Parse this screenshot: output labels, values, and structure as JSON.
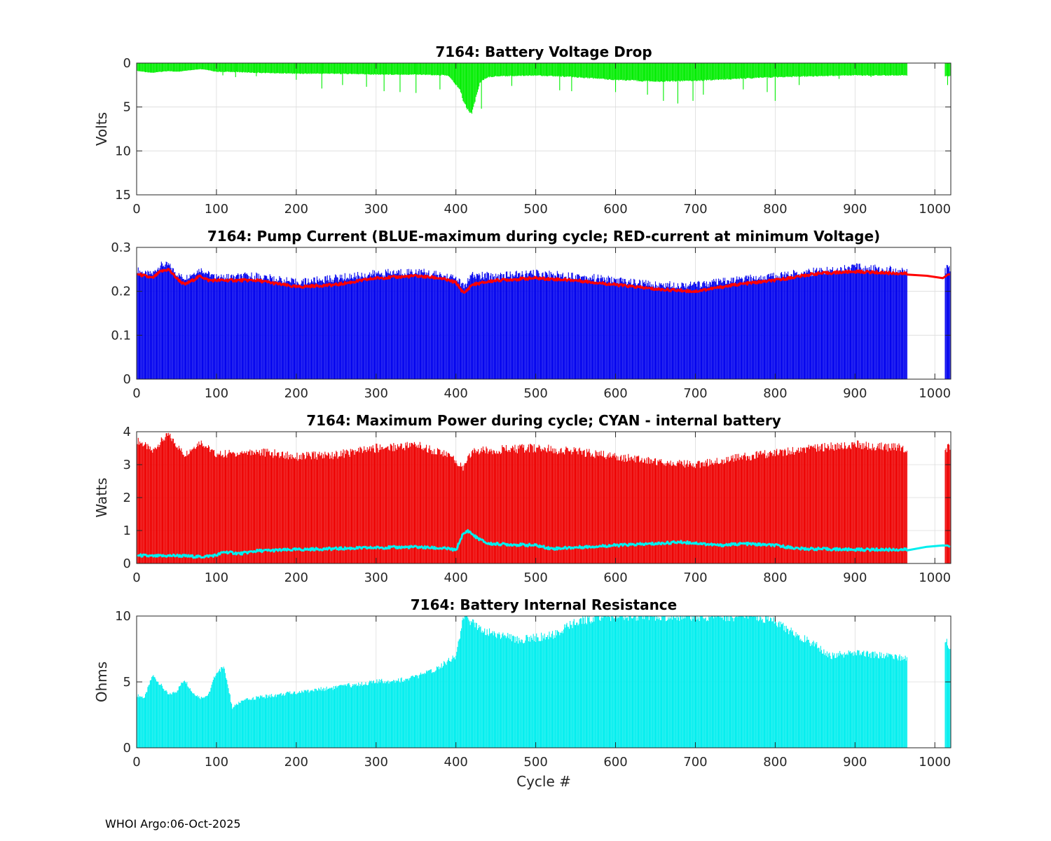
{
  "footer": "WHOI Argo:06-Oct-2025",
  "xlabel": "Cycle #",
  "chart_data": [
    {
      "type": "bar",
      "id": "voltage",
      "title": "7164: Battery Voltage Drop",
      "ylabel": "Volts",
      "xlim": [
        0,
        1020
      ],
      "ylim": [
        0,
        15
      ],
      "y_reversed": true,
      "xticks": [
        0,
        100,
        200,
        300,
        400,
        500,
        600,
        700,
        800,
        900,
        1000
      ],
      "yticks": [
        0,
        5,
        10,
        15
      ],
      "grid": true,
      "series": [
        {
          "name": "Voltage drop",
          "color": "#00ee00",
          "style": "stem",
          "points": [
            [
              0,
              0.9
            ],
            [
              10,
              1.0
            ],
            [
              20,
              1.1
            ],
            [
              30,
              1.0
            ],
            [
              40,
              0.9
            ],
            [
              50,
              1.0
            ],
            [
              60,
              0.9
            ],
            [
              70,
              0.8
            ],
            [
              80,
              0.7
            ],
            [
              90,
              0.8
            ],
            [
              100,
              1.0
            ],
            [
              120,
              1.0
            ],
            [
              150,
              1.1
            ],
            [
              200,
              1.2
            ],
            [
              250,
              1.2
            ],
            [
              300,
              1.3
            ],
            [
              350,
              1.3
            ],
            [
              390,
              1.4
            ],
            [
              405,
              3.0
            ],
            [
              410,
              4.5
            ],
            [
              415,
              5.3
            ],
            [
              420,
              5.7
            ],
            [
              425,
              4.0
            ],
            [
              430,
              2.2
            ],
            [
              440,
              1.6
            ],
            [
              450,
              1.5
            ],
            [
              500,
              1.4
            ],
            [
              550,
              1.6
            ],
            [
              600,
              1.9
            ],
            [
              650,
              2.1
            ],
            [
              700,
              2.0
            ],
            [
              750,
              1.8
            ],
            [
              800,
              1.6
            ],
            [
              850,
              1.5
            ],
            [
              900,
              1.4
            ],
            [
              965,
              1.4
            ],
            [
              1015,
              1.5
            ],
            [
              1020,
              1.5
            ]
          ],
          "spikes": [
            [
              108,
              1.4
            ],
            [
              124,
              1.6
            ],
            [
              150,
              1.5
            ],
            [
              200,
              1.9
            ],
            [
              232,
              2.9
            ],
            [
              258,
              2.5
            ],
            [
              288,
              2.7
            ],
            [
              310,
              3.2
            ],
            [
              330,
              3.3
            ],
            [
              350,
              3.4
            ],
            [
              380,
              3.0
            ],
            [
              432,
              5.2
            ],
            [
              470,
              2.6
            ],
            [
              530,
              3.1
            ],
            [
              545,
              3.2
            ],
            [
              600,
              3.3
            ],
            [
              640,
              3.6
            ],
            [
              660,
              4.3
            ],
            [
              678,
              4.6
            ],
            [
              697,
              4.3
            ],
            [
              710,
              3.6
            ],
            [
              760,
              3.0
            ],
            [
              790,
              3.3
            ],
            [
              800,
              4.3
            ],
            [
              830,
              2.5
            ],
            [
              880,
              1.8
            ],
            [
              920,
              1.6
            ],
            [
              1016,
              2.5
            ]
          ]
        }
      ]
    },
    {
      "type": "bar",
      "id": "current",
      "title": "7164: Pump Current (BLUE-maximum during cycle; RED-current at minimum Voltage)",
      "ylabel": "",
      "xlim": [
        0,
        1020
      ],
      "ylim": [
        0,
        0.3
      ],
      "xticks": [
        0,
        100,
        200,
        300,
        400,
        500,
        600,
        700,
        800,
        900,
        1000
      ],
      "yticks": [
        0,
        0.1,
        0.2,
        0.3
      ],
      "grid": true,
      "series": [
        {
          "name": "BLUE-maximum during cycle",
          "color": "#0000ee",
          "style": "stem",
          "points": [
            [
              0,
              0.25
            ],
            [
              10,
              0.24
            ],
            [
              20,
              0.24
            ],
            [
              30,
              0.26
            ],
            [
              40,
              0.26
            ],
            [
              50,
              0.24
            ],
            [
              60,
              0.23
            ],
            [
              70,
              0.24
            ],
            [
              80,
              0.25
            ],
            [
              90,
              0.24
            ],
            [
              100,
              0.23
            ],
            [
              150,
              0.235
            ],
            [
              200,
              0.22
            ],
            [
              250,
              0.23
            ],
            [
              300,
              0.24
            ],
            [
              350,
              0.245
            ],
            [
              400,
              0.23
            ],
            [
              410,
              0.21
            ],
            [
              420,
              0.235
            ],
            [
              450,
              0.235
            ],
            [
              500,
              0.24
            ],
            [
              550,
              0.235
            ],
            [
              600,
              0.225
            ],
            [
              650,
              0.215
            ],
            [
              700,
              0.215
            ],
            [
              750,
              0.225
            ],
            [
              800,
              0.235
            ],
            [
              850,
              0.245
            ],
            [
              900,
              0.255
            ],
            [
              965,
              0.245
            ],
            [
              1015,
              0.25
            ],
            [
              1020,
              0.255
            ]
          ]
        },
        {
          "name": "RED-current at minimum Voltage",
          "color": "#ff0000",
          "style": "line",
          "points": [
            [
              0,
              0.24
            ],
            [
              10,
              0.235
            ],
            [
              20,
              0.23
            ],
            [
              30,
              0.245
            ],
            [
              40,
              0.25
            ],
            [
              50,
              0.23
            ],
            [
              60,
              0.215
            ],
            [
              70,
              0.225
            ],
            [
              80,
              0.235
            ],
            [
              90,
              0.225
            ],
            [
              100,
              0.225
            ],
            [
              150,
              0.225
            ],
            [
              200,
              0.21
            ],
            [
              250,
              0.215
            ],
            [
              300,
              0.23
            ],
            [
              350,
              0.235
            ],
            [
              380,
              0.23
            ],
            [
              400,
              0.22
            ],
            [
              410,
              0.195
            ],
            [
              420,
              0.215
            ],
            [
              450,
              0.225
            ],
            [
              500,
              0.23
            ],
            [
              550,
              0.225
            ],
            [
              600,
              0.215
            ],
            [
              650,
              0.205
            ],
            [
              700,
              0.2
            ],
            [
              750,
              0.215
            ],
            [
              800,
              0.225
            ],
            [
              850,
              0.24
            ],
            [
              900,
              0.245
            ],
            [
              965,
              0.24
            ],
            [
              1010,
              0.23
            ],
            [
              1020,
              0.24
            ]
          ]
        }
      ]
    },
    {
      "type": "bar",
      "id": "power",
      "title": "7164: Maximum Power during cycle; CYAN - internal battery",
      "ylabel": "Watts",
      "xlim": [
        0,
        1020
      ],
      "ylim": [
        0,
        4
      ],
      "xticks": [
        0,
        100,
        200,
        300,
        400,
        500,
        600,
        700,
        800,
        900,
        1000
      ],
      "yticks": [
        0,
        1,
        2,
        3,
        4
      ],
      "grid": true,
      "series": [
        {
          "name": "Maximum Power",
          "color": "#ee0000",
          "style": "stem",
          "points": [
            [
              0,
              3.75
            ],
            [
              10,
              3.6
            ],
            [
              20,
              3.4
            ],
            [
              30,
              3.7
            ],
            [
              40,
              3.9
            ],
            [
              50,
              3.6
            ],
            [
              60,
              3.3
            ],
            [
              70,
              3.5
            ],
            [
              80,
              3.7
            ],
            [
              90,
              3.5
            ],
            [
              100,
              3.3
            ],
            [
              150,
              3.4
            ],
            [
              200,
              3.25
            ],
            [
              250,
              3.3
            ],
            [
              300,
              3.5
            ],
            [
              350,
              3.6
            ],
            [
              390,
              3.3
            ],
            [
              410,
              2.9
            ],
            [
              420,
              3.4
            ],
            [
              450,
              3.45
            ],
            [
              500,
              3.5
            ],
            [
              550,
              3.4
            ],
            [
              600,
              3.25
            ],
            [
              650,
              3.1
            ],
            [
              700,
              3.0
            ],
            [
              750,
              3.2
            ],
            [
              800,
              3.35
            ],
            [
              850,
              3.5
            ],
            [
              900,
              3.6
            ],
            [
              965,
              3.5
            ],
            [
              1015,
              3.45
            ],
            [
              1020,
              3.6
            ]
          ]
        },
        {
          "name": "CYAN - internal battery",
          "color": "#00eeee",
          "style": "line",
          "points": [
            [
              0,
              0.25
            ],
            [
              20,
              0.22
            ],
            [
              50,
              0.24
            ],
            [
              80,
              0.2
            ],
            [
              100,
              0.25
            ],
            [
              110,
              0.35
            ],
            [
              130,
              0.3
            ],
            [
              150,
              0.38
            ],
            [
              200,
              0.42
            ],
            [
              250,
              0.45
            ],
            [
              300,
              0.48
            ],
            [
              350,
              0.5
            ],
            [
              390,
              0.45
            ],
            [
              400,
              0.4
            ],
            [
              408,
              0.85
            ],
            [
              415,
              1.0
            ],
            [
              425,
              0.8
            ],
            [
              440,
              0.6
            ],
            [
              500,
              0.55
            ],
            [
              520,
              0.45
            ],
            [
              560,
              0.5
            ],
            [
              600,
              0.55
            ],
            [
              650,
              0.6
            ],
            [
              680,
              0.65
            ],
            [
              700,
              0.62
            ],
            [
              730,
              0.55
            ],
            [
              760,
              0.6
            ],
            [
              800,
              0.55
            ],
            [
              830,
              0.45
            ],
            [
              900,
              0.42
            ],
            [
              965,
              0.42
            ],
            [
              1010,
              0.55
            ],
            [
              1020,
              0.5
            ]
          ]
        }
      ]
    },
    {
      "type": "bar",
      "id": "resistance",
      "title": "7164: Battery Internal Resistance",
      "ylabel": "Ohms",
      "xlim": [
        0,
        1020
      ],
      "ylim": [
        0,
        10
      ],
      "xticks": [
        0,
        100,
        200,
        300,
        400,
        500,
        600,
        700,
        800,
        900,
        1000
      ],
      "yticks": [
        0,
        5,
        10
      ],
      "grid": true,
      "series": [
        {
          "name": "Internal Resistance",
          "color": "#00eeee",
          "style": "stem",
          "points": [
            [
              0,
              4.0
            ],
            [
              10,
              3.8
            ],
            [
              20,
              5.5
            ],
            [
              30,
              4.8
            ],
            [
              40,
              4.0
            ],
            [
              50,
              4.3
            ],
            [
              60,
              5.2
            ],
            [
              70,
              4.2
            ],
            [
              80,
              3.8
            ],
            [
              90,
              4.0
            ],
            [
              100,
              5.8
            ],
            [
              110,
              6.0
            ],
            [
              120,
              3.0
            ],
            [
              130,
              3.5
            ],
            [
              150,
              3.8
            ],
            [
              200,
              4.2
            ],
            [
              250,
              4.6
            ],
            [
              300,
              5.0
            ],
            [
              340,
              5.2
            ],
            [
              370,
              5.8
            ],
            [
              400,
              7.0
            ],
            [
              410,
              10.0
            ],
            [
              420,
              9.5
            ],
            [
              440,
              8.8
            ],
            [
              480,
              8.2
            ],
            [
              520,
              8.5
            ],
            [
              550,
              9.5
            ],
            [
              580,
              10.0
            ],
            [
              700,
              10.0
            ],
            [
              780,
              10.0
            ],
            [
              800,
              9.5
            ],
            [
              830,
              8.5
            ],
            [
              850,
              7.8
            ],
            [
              870,
              7.0
            ],
            [
              900,
              7.2
            ],
            [
              965,
              6.8
            ],
            [
              1015,
              8.0
            ],
            [
              1020,
              7.6
            ]
          ]
        }
      ]
    }
  ]
}
